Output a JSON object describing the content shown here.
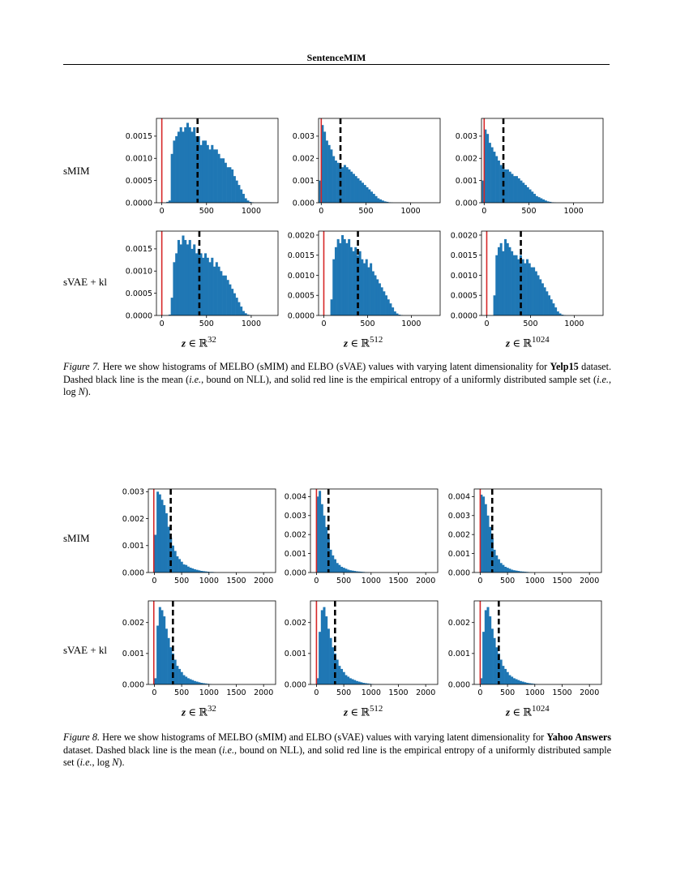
{
  "header": {
    "title": "SentenceMIM"
  },
  "figures": [
    {
      "id": "fig7",
      "row_labels": [
        "sMIM",
        "sVAE + kl"
      ],
      "col_labels": [
        "32",
        "512",
        "1024"
      ],
      "caption": {
        "label": "Figure 7.",
        "text": "Here we show histograms of MELBO (sMIM) and ELBO (sVAE) values with varying latent dimensionality for",
        "dataset": "Yelp15",
        "after": "dataset. Dashed black line is the mean (",
        "ie1": "i.e.",
        "mid": ", bound on NLL), and solid red line is the empirical entropy of a uniformly distributed sample set (",
        "ie2": "i.e.",
        "end": ","
      }
    },
    {
      "id": "fig8",
      "row_labels": [
        "sMIM",
        "sVAE + kl"
      ],
      "col_labels": [
        "32",
        "512",
        "1024"
      ],
      "caption": {
        "label": "Figure 8.",
        "text": "Here we show histograms of MELBO (sMIM) and ELBO (sVAE) values with varying latent dimensionality for",
        "dataset": "Yahoo Answers",
        "after": "dataset. Dashed black line is the mean (",
        "ie1": "i.e.",
        "mid": ", bound on NLL), and solid red line is the empirical entropy of a uniformly distributed sample set (",
        "ie2": "i.e.",
        "end": ","
      }
    }
  ],
  "chart_data": [
    {
      "type": "bar",
      "figure": "fig7",
      "row": "sMIM",
      "col": "32",
      "xlim": [
        -60,
        1300
      ],
      "ylim": [
        0,
        0.0019
      ],
      "xticks": [
        0,
        500,
        1000
      ],
      "yticks": [
        0,
        0.0005,
        0.001,
        0.0015
      ],
      "ytick_labels": [
        "0.0000",
        "0.0005",
        "0.0010",
        "0.0015"
      ],
      "hist": {
        "start": 50,
        "step": 25,
        "values": [
          2e-05,
          5e-05,
          0.0011,
          0.0014,
          0.0015,
          0.0016,
          0.0017,
          0.0016,
          0.0017,
          0.0018,
          0.0017,
          0.0016,
          0.0017,
          0.0015,
          0.0015,
          0.0013,
          0.0014,
          0.0014,
          0.0013,
          0.0012,
          0.0013,
          0.0012,
          0.0012,
          0.0011,
          0.001,
          0.001,
          0.0009,
          0.0008,
          0.0008,
          0.00075,
          0.0006,
          0.0005,
          0.0004,
          0.0003,
          0.0002,
          0.0001,
          5e-05,
          2e-05,
          1e-05
        ]
      },
      "red": 0,
      "mean": 400
    },
    {
      "type": "bar",
      "figure": "fig7",
      "row": "sMIM",
      "col": "512",
      "xlim": [
        -30,
        1330
      ],
      "ylim": [
        0,
        0.0038
      ],
      "xticks": [
        0,
        500,
        1000
      ],
      "yticks": [
        0,
        0.001,
        0.002,
        0.003
      ],
      "ytick_labels": [
        "0.000",
        "0.001",
        "0.002",
        "0.003"
      ],
      "hist": {
        "start": -25,
        "step": 25,
        "values": [
          0.001,
          0.0035,
          0.0032,
          0.0028,
          0.0026,
          0.0024,
          0.0021,
          0.0019,
          0.0018,
          0.0017,
          0.0016,
          0.0017,
          0.0016,
          0.0015,
          0.0014,
          0.0013,
          0.0012,
          0.0011,
          0.001,
          0.0009,
          0.0008,
          0.0007,
          0.0006,
          0.0005,
          0.0004,
          0.0003,
          0.0002,
          0.00015,
          0.0001,
          6e-05,
          4e-05,
          2e-05,
          1e-05
        ]
      },
      "red": 0,
      "mean": 215
    },
    {
      "type": "bar",
      "figure": "fig7",
      "row": "sMIM",
      "col": "1024",
      "xlim": [
        -30,
        1330
      ],
      "ylim": [
        0,
        0.0038
      ],
      "xticks": [
        0,
        500,
        1000
      ],
      "yticks": [
        0,
        0.001,
        0.002,
        0.003
      ],
      "ytick_labels": [
        "0.000",
        "0.001",
        "0.002",
        "0.003"
      ],
      "hist": {
        "start": -25,
        "step": 25,
        "values": [
          0.001,
          0.0033,
          0.0031,
          0.0027,
          0.0025,
          0.0023,
          0.0021,
          0.0019,
          0.0017,
          0.0016,
          0.0015,
          0.0015,
          0.0014,
          0.0013,
          0.0012,
          0.0012,
          0.0011,
          0.001,
          0.0009,
          0.0008,
          0.0007,
          0.0006,
          0.0005,
          0.0004,
          0.0003,
          0.00025,
          0.0002,
          0.00015,
          0.0001,
          6e-05,
          4e-05,
          2e-05,
          1e-05
        ]
      },
      "red": 0,
      "mean": 215
    },
    {
      "type": "bar",
      "figure": "fig7",
      "row": "sVAE + kl",
      "col": "32",
      "xlim": [
        -60,
        1300
      ],
      "ylim": [
        0,
        0.0019
      ],
      "xticks": [
        0,
        500,
        1000
      ],
      "yticks": [
        0,
        0.0005,
        0.001,
        0.0015
      ],
      "ytick_labels": [
        "0.0000",
        "0.0005",
        "0.0010",
        "0.0015"
      ],
      "hist": {
        "start": 75,
        "step": 25,
        "values": [
          2e-05,
          0.0004,
          0.0012,
          0.0014,
          0.0017,
          0.0016,
          0.0018,
          0.0017,
          0.0016,
          0.0017,
          0.0015,
          0.0016,
          0.0014,
          0.0015,
          0.0014,
          0.0013,
          0.0014,
          0.0013,
          0.0012,
          0.0013,
          0.0011,
          0.0012,
          0.0011,
          0.001,
          0.0009,
          0.0009,
          0.0008,
          0.0007,
          0.0006,
          0.0005,
          0.0004,
          0.0003,
          0.0002,
          0.0001,
          5e-05,
          2e-05,
          1e-05
        ]
      },
      "red": 0,
      "mean": 420
    },
    {
      "type": "bar",
      "figure": "fig7",
      "row": "sVAE + kl",
      "col": "512",
      "xlim": [
        -60,
        1330
      ],
      "ylim": [
        0,
        0.0021
      ],
      "xticks": [
        0,
        500,
        1000
      ],
      "yticks": [
        0,
        0.0005,
        0.001,
        0.0015,
        0.002
      ],
      "ytick_labels": [
        "0.0000",
        "0.0005",
        "0.0010",
        "0.0015",
        "0.0020"
      ],
      "hist": {
        "start": 75,
        "step": 25,
        "values": [
          0.0004,
          0.0014,
          0.0017,
          0.0019,
          0.0018,
          0.002,
          0.0019,
          0.0018,
          0.0019,
          0.0017,
          0.0016,
          0.0017,
          0.0015,
          0.0016,
          0.0014,
          0.0013,
          0.0014,
          0.0012,
          0.0013,
          0.0011,
          0.001,
          0.0009,
          0.0008,
          0.0007,
          0.0006,
          0.0005,
          0.0004,
          0.0003,
          0.0002,
          0.0001,
          5e-05,
          2e-05,
          1e-05
        ]
      },
      "red": 0,
      "mean": 390
    },
    {
      "type": "bar",
      "figure": "fig7",
      "row": "sVAE + kl",
      "col": "1024",
      "xlim": [
        -60,
        1330
      ],
      "ylim": [
        0,
        0.0021
      ],
      "xticks": [
        0,
        500,
        1000
      ],
      "yticks": [
        0,
        0.0005,
        0.001,
        0.0015,
        0.002
      ],
      "ytick_labels": [
        "0.0000",
        "0.0005",
        "0.0010",
        "0.0015",
        "0.0020"
      ],
      "hist": {
        "start": 75,
        "step": 25,
        "values": [
          0.0005,
          0.0015,
          0.0017,
          0.0018,
          0.0016,
          0.0019,
          0.0018,
          0.0017,
          0.0016,
          0.0015,
          0.0015,
          0.0014,
          0.0015,
          0.0014,
          0.0013,
          0.0014,
          0.0013,
          0.0012,
          0.0012,
          0.0011,
          0.001,
          0.0009,
          0.0008,
          0.0007,
          0.0006,
          0.0005,
          0.0004,
          0.0003,
          0.0002,
          0.0001,
          5e-05,
          2e-05,
          1e-05
        ]
      },
      "red": 0,
      "mean": 390
    },
    {
      "type": "bar",
      "figure": "fig8",
      "row": "sMIM",
      "col": "32",
      "xlim": [
        -110,
        2220
      ],
      "ylim": [
        0,
        0.0031
      ],
      "xticks": [
        0,
        500,
        1000,
        1500,
        2000
      ],
      "yticks": [
        0,
        0.001,
        0.002,
        0.003
      ],
      "ytick_labels": [
        "0.000",
        "0.001",
        "0.002",
        "0.003"
      ],
      "hist": {
        "start": 0,
        "step": 40,
        "values": [
          0.0014,
          0.003,
          0.0029,
          0.0027,
          0.0025,
          0.0022,
          0.0017,
          0.0013,
          0.001,
          0.0008,
          0.0006,
          0.0005,
          0.0004,
          0.0003,
          0.00028,
          0.00022,
          0.00018,
          0.00015,
          0.00012,
          0.0001,
          8e-05,
          6e-05,
          5e-05,
          4e-05,
          3e-05,
          2e-05,
          2e-05,
          1e-05
        ]
      },
      "red": -10,
      "mean": 300
    },
    {
      "type": "bar",
      "figure": "fig8",
      "row": "sMIM",
      "col": "512",
      "xlim": [
        -110,
        2220
      ],
      "ylim": [
        0,
        0.0044
      ],
      "xticks": [
        0,
        500,
        1000,
        1500,
        2000
      ],
      "yticks": [
        0,
        0.001,
        0.002,
        0.003,
        0.004
      ],
      "ytick_labels": [
        "0.000",
        "0.001",
        "0.002",
        "0.003",
        "0.004"
      ],
      "hist": {
        "start": 0,
        "step": 40,
        "values": [
          0.004,
          0.0043,
          0.0036,
          0.003,
          0.0024,
          0.0018,
          0.0012,
          0.0009,
          0.0007,
          0.0005,
          0.0004,
          0.0003,
          0.00025,
          0.0002,
          0.00015,
          0.00012,
          0.0001,
          8e-05,
          6e-05,
          5e-05,
          4e-05,
          3e-05,
          2e-05,
          1e-05
        ]
      },
      "red": 0,
      "mean": 220
    },
    {
      "type": "bar",
      "figure": "fig8",
      "row": "sMIM",
      "col": "1024",
      "xlim": [
        -110,
        2220
      ],
      "ylim": [
        0,
        0.0044
      ],
      "xticks": [
        0,
        500,
        1000,
        1500,
        2000
      ],
      "yticks": [
        0,
        0.001,
        0.002,
        0.003,
        0.004
      ],
      "ytick_labels": [
        "0.000",
        "0.001",
        "0.002",
        "0.003",
        "0.004"
      ],
      "hist": {
        "start": 0,
        "step": 40,
        "values": [
          0.0041,
          0.004,
          0.0036,
          0.003,
          0.0024,
          0.0018,
          0.0012,
          0.0009,
          0.0007,
          0.0005,
          0.0004,
          0.0003,
          0.00025,
          0.0002,
          0.00015,
          0.00012,
          0.0001,
          8e-05,
          6e-05,
          5e-05,
          4e-05,
          3e-05,
          2e-05,
          1e-05
        ]
      },
      "red": 0,
      "mean": 220
    },
    {
      "type": "bar",
      "figure": "fig8",
      "row": "sVAE + kl",
      "col": "32",
      "xlim": [
        -110,
        2220
      ],
      "ylim": [
        0,
        0.0027
      ],
      "xticks": [
        0,
        500,
        1000,
        1500,
        2000
      ],
      "yticks": [
        0,
        0.001,
        0.002
      ],
      "ytick_labels": [
        "0.000",
        "0.001",
        "0.002"
      ],
      "hist": {
        "start": 0,
        "step": 40,
        "values": [
          0.0002,
          0.0019,
          0.0025,
          0.0024,
          0.0022,
          0.0018,
          0.0015,
          0.0012,
          0.001,
          0.0008,
          0.0006,
          0.0005,
          0.0004,
          0.0003,
          0.00025,
          0.0002,
          0.00017,
          0.00014,
          0.00011,
          9e-05,
          7e-05,
          5e-05,
          4e-05,
          3e-05,
          2e-05,
          1e-05
        ]
      },
      "red": -10,
      "mean": 340
    },
    {
      "type": "bar",
      "figure": "fig8",
      "row": "sVAE + kl",
      "col": "512",
      "xlim": [
        -110,
        2220
      ],
      "ylim": [
        0,
        0.0027
      ],
      "xticks": [
        0,
        500,
        1000,
        1500,
        2000
      ],
      "yticks": [
        0,
        0.001,
        0.002
      ],
      "ytick_labels": [
        "0.000",
        "0.001",
        "0.002"
      ],
      "hist": {
        "start": 0,
        "step": 40,
        "values": [
          0.0002,
          0.0017,
          0.0024,
          0.0025,
          0.0022,
          0.0018,
          0.0015,
          0.0012,
          0.001,
          0.0008,
          0.0006,
          0.0005,
          0.0004,
          0.0003,
          0.00025,
          0.0002,
          0.00017,
          0.00014,
          0.00011,
          9e-05,
          7e-05,
          5e-05,
          4e-05,
          3e-05,
          2e-05,
          1e-05
        ]
      },
      "red": 0,
      "mean": 340
    },
    {
      "type": "bar",
      "figure": "fig8",
      "row": "sVAE + kl",
      "col": "1024",
      "xlim": [
        -110,
        2220
      ],
      "ylim": [
        0,
        0.0027
      ],
      "xticks": [
        0,
        500,
        1000,
        1500,
        2000
      ],
      "yticks": [
        0,
        0.001,
        0.002
      ],
      "ytick_labels": [
        "0.000",
        "0.001",
        "0.002"
      ],
      "hist": {
        "start": 0,
        "step": 40,
        "values": [
          0.0002,
          0.0017,
          0.0024,
          0.0025,
          0.0022,
          0.0018,
          0.0015,
          0.0012,
          0.001,
          0.0008,
          0.0006,
          0.0005,
          0.0004,
          0.0003,
          0.00025,
          0.0002,
          0.00017,
          0.00014,
          0.00011,
          9e-05,
          7e-05,
          5e-05,
          4e-05,
          3e-05,
          2e-05,
          1e-05
        ]
      },
      "red": 0,
      "mean": 340
    }
  ],
  "colors": {
    "bar": "#1f77b4",
    "red_line": "#d62728",
    "mean_line": "#000000"
  }
}
